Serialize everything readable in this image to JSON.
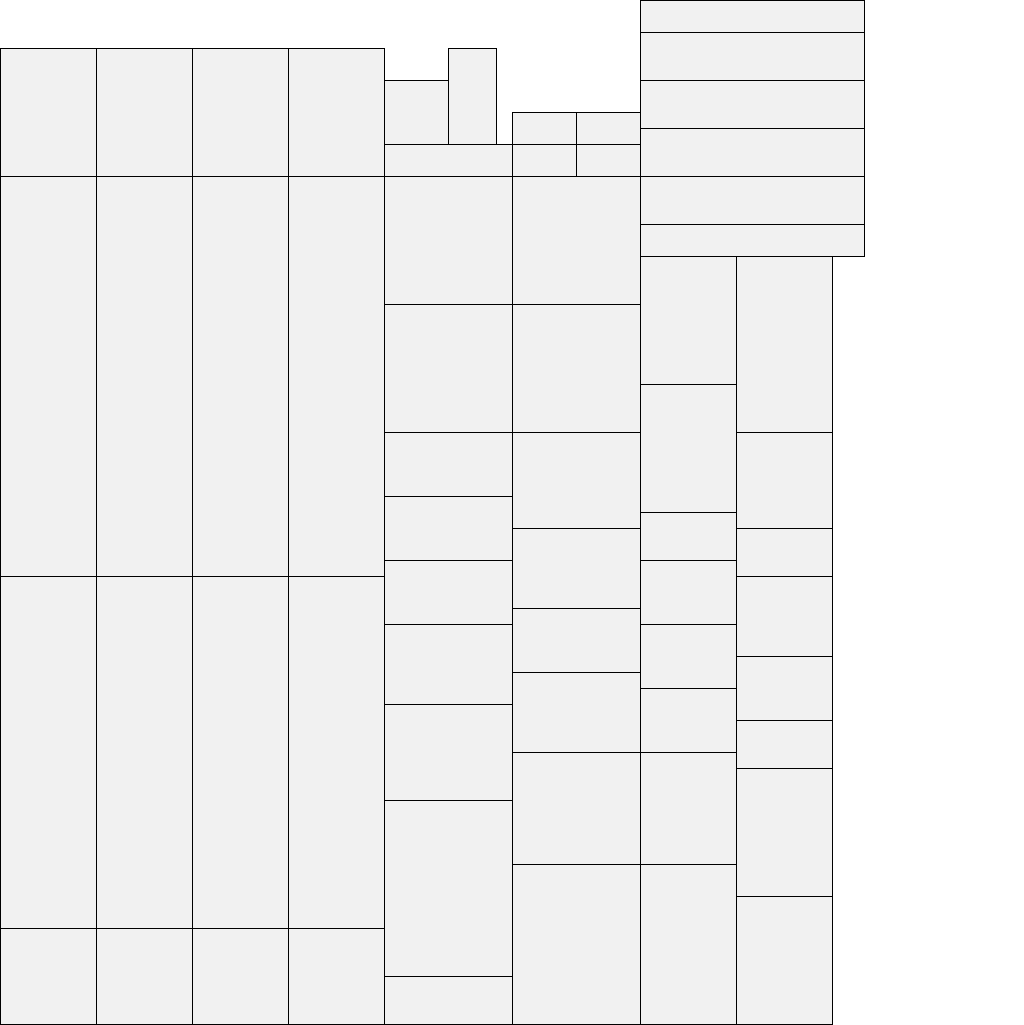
{
  "colors": {
    "cell_fill": "#f1f1f1",
    "cell_border": "#000000",
    "background": "#ffffff"
  }
}
